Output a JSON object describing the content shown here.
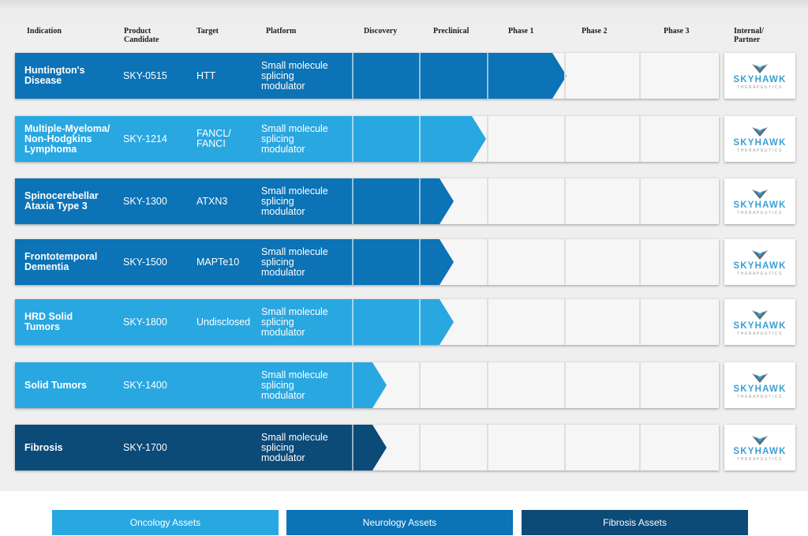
{
  "headers": [
    {
      "key": "indication",
      "label": "Indication"
    },
    {
      "key": "product",
      "label": "Product\nCandidate"
    },
    {
      "key": "target",
      "label": "Target"
    },
    {
      "key": "platform",
      "label": "Platform"
    },
    {
      "key": "discovery",
      "label": "Discovery"
    },
    {
      "key": "preclinical",
      "label": "Preclinical"
    },
    {
      "key": "phase1",
      "label": "Phase 1"
    },
    {
      "key": "phase2",
      "label": "Phase 2"
    },
    {
      "key": "phase3",
      "label": "Phase 3"
    },
    {
      "key": "partner",
      "label": "Internal/\nPartner"
    }
  ],
  "colors": {
    "oncology": "#29a7e1",
    "neurology": "#0b73b6",
    "fibrosis": "#0c4a78"
  },
  "programs": [
    {
      "indication": "Huntington's\nDisease",
      "product": "SKY-0515",
      "target": "HTT",
      "platform": "Small molecule\nsplicing\nmodulator",
      "category": "neurology",
      "progress": 2.85
    },
    {
      "indication": "Multiple-Myeloma/\nNon-Hodgkins\nLymphoma",
      "product": "SKY-1214",
      "target": "FANCL/\nFANCI",
      "platform": "Small molecule\nsplicing\nmodulator",
      "category": "oncology",
      "progress": 1.78
    },
    {
      "indication": "Spinocerebellar\nAtaxia Type 3",
      "product": "SKY-1300",
      "target": "ATXN3",
      "platform": "Small molecule\nsplicing\nmodulator",
      "category": "neurology",
      "progress": 1.3
    },
    {
      "indication": "Frontotemporal\nDementia",
      "product": "SKY-1500",
      "target": "MAPTe10",
      "platform": "Small molecule\nsplicing\nmodulator",
      "category": "neurology",
      "progress": 1.3
    },
    {
      "indication": "HRD Solid\nTumors",
      "product": "SKY-1800",
      "target": "Undisclosed",
      "platform": "Small molecule\nsplicing\nmodulator",
      "category": "oncology",
      "progress": 1.3
    },
    {
      "indication": "Solid Tumors",
      "product": "SKY-1400",
      "target": "",
      "platform": "Small molecule\nsplicing\nmodulator",
      "category": "oncology",
      "progress": 0.3
    },
    {
      "indication": "Fibrosis",
      "product": "SKY-1700",
      "target": "",
      "platform": "Small molecule\nsplicing\nmodulator",
      "category": "fibrosis",
      "progress": 0.3
    }
  ],
  "partner_logo": {
    "name": "SKYHAWK",
    "tagline": "THERAPEUTICS"
  },
  "legend": [
    {
      "label": "Oncology Assets",
      "category": "oncology"
    },
    {
      "label": "Neurology Assets",
      "category": "neurology"
    },
    {
      "label": "Fibrosis Assets",
      "category": "fibrosis"
    }
  ]
}
